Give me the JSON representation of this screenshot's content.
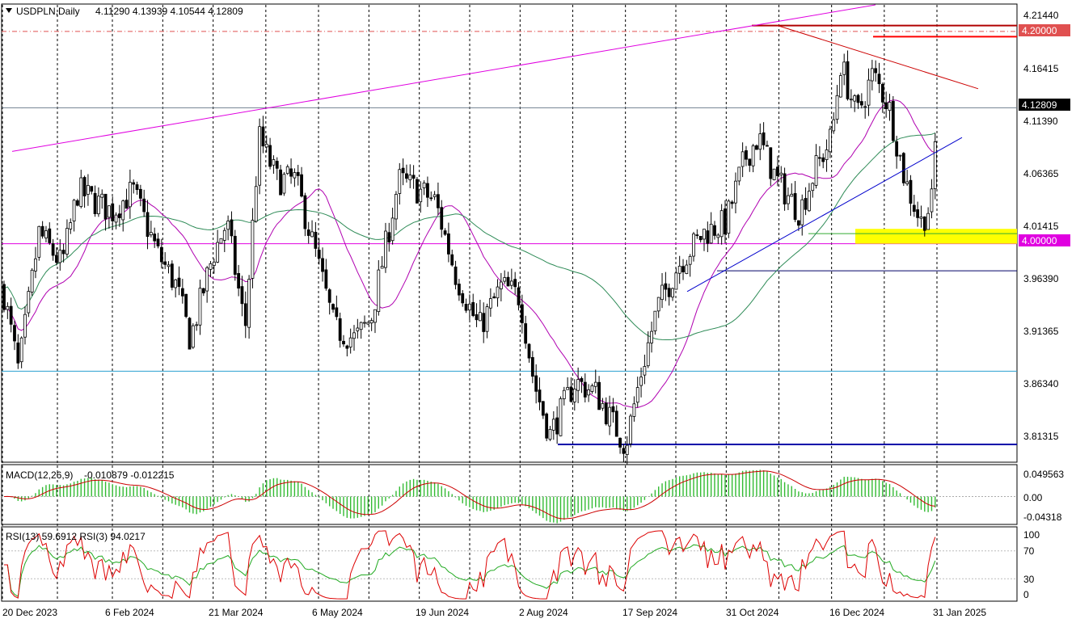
{
  "header": {
    "symbol_timeframe": "USDPLN,Daily",
    "ohlc": "4.11290 4.13939 4.10544 4.12809"
  },
  "macd_header": {
    "label": "MACD(12,26,9)",
    "values": "-0.010879 -0.012215"
  },
  "rsi_header": {
    "label": "RSI(13) 59.6912  RSI(3) 94.0217"
  },
  "price_axis": {
    "ticks": [
      "4.21440",
      "4.16415",
      "4.11390",
      "4.06365",
      "4.01415",
      "3.96390",
      "3.91365",
      "3.86340",
      "3.81315"
    ],
    "current_price": "4.12809",
    "level_420": "4.20000",
    "level_400": "4.00000"
  },
  "macd_axis": {
    "ticks": [
      "0.049563",
      "0.00",
      "-0.04318"
    ]
  },
  "rsi_axis": {
    "ticks": [
      "100",
      "70",
      "30",
      "0"
    ]
  },
  "date_axis": {
    "labels": [
      "20 Dec 2023",
      "6 Feb 2024",
      "21 Mar 2024",
      "6 May 2024",
      "19 Jun 2024",
      "2 Aug 2024",
      "17 Sep 2024",
      "31 Oct 2024",
      "16 Dec 2024",
      "31 Jan 2025"
    ]
  },
  "colors": {
    "bull_candle": "#ffffff",
    "bear_candle": "#000000",
    "ma_fast": "#b000b0",
    "ma_slow": "#2e8b57",
    "trend_magenta": "#e000e0",
    "trend_red": "#cc0000",
    "trend_blue": "#0000cc",
    "level_cyan": "#2aa0d0",
    "support_zone": "#ffff00",
    "macd_hist": "#33bb33",
    "macd_signal": "#cc0000",
    "rsi13": "#22aa22",
    "rsi3": "#dd0000"
  },
  "chart_data": {
    "type": "candlestick",
    "symbol": "USDPLN",
    "timeframe": "Daily",
    "last_bar": {
      "open": 4.1129,
      "high": 4.13939,
      "low": 4.10544,
      "close": 4.12809
    },
    "price_range": [
      3.795,
      4.225
    ],
    "horizontal_levels": [
      4.2,
      4.0,
      3.88,
      3.9745,
      3.811,
      4.2055,
      4.195
    ],
    "support_zone": [
      4.0,
      4.01
    ],
    "price_path": [
      [
        "20 Dec 2023",
        3.96
      ],
      [
        "27 Dec 2023",
        3.88
      ],
      [
        "5 Jan 2024",
        4.01
      ],
      [
        "15 Jan 2024",
        3.98
      ],
      [
        "22 Jan 2024",
        4.05
      ],
      [
        "6 Feb 2024",
        4.03
      ],
      [
        "15 Feb 2024",
        4.05
      ],
      [
        "26 Feb 2024",
        3.99
      ],
      [
        "5 Mar 2024",
        3.96
      ],
      [
        "11 Mar 2024",
        3.91
      ],
      [
        "21 Mar 2024",
        3.99
      ],
      [
        "27 Mar 2024",
        4.02
      ],
      [
        "4 Apr 2024",
        3.92
      ],
      [
        "10 Apr 2024",
        4.1
      ],
      [
        "18 Apr 2024",
        4.06
      ],
      [
        "26 Apr 2024",
        4.06
      ],
      [
        "6 May 2024",
        3.98
      ],
      [
        "13 May 2024",
        3.92
      ],
      [
        "22 May 2024",
        3.91
      ],
      [
        "29 May 2024",
        3.93
      ],
      [
        "10 Jun 2024",
        4.06
      ],
      [
        "19 Jun 2024",
        4.05
      ],
      [
        "26 Jun 2024",
        4.04
      ],
      [
        "5 Jul 2024",
        3.97
      ],
      [
        "15 Jul 2024",
        3.92
      ],
      [
        "25 Jul 2024",
        3.96
      ],
      [
        "2 Aug 2024",
        3.95
      ],
      [
        "8 Aug 2024",
        3.87
      ],
      [
        "15 Aug 2024",
        3.82
      ],
      [
        "26 Aug 2024",
        3.87
      ],
      [
        "4 Sep 2024",
        3.86
      ],
      [
        "17 Sep 2024",
        3.81
      ],
      [
        "24 Sep 2024",
        3.88
      ],
      [
        "1 Oct 2024",
        3.94
      ],
      [
        "10 Oct 2024",
        3.98
      ],
      [
        "21 Oct 2024",
        4.01
      ],
      [
        "31 Oct 2024",
        4.02
      ],
      [
        "8 Nov 2024",
        4.08
      ],
      [
        "14 Nov 2024",
        4.1
      ],
      [
        "22 Nov 2024",
        4.06
      ],
      [
        "2 Dec 2024",
        4.03
      ],
      [
        "9 Dec 2024",
        4.07
      ],
      [
        "16 Dec 2024",
        4.1
      ],
      [
        "20 Dec 2024",
        4.17
      ],
      [
        "27 Dec 2024",
        4.12
      ],
      [
        "3 Jan 2025",
        4.16
      ],
      [
        "10 Jan 2025",
        4.13
      ],
      [
        "17 Jan 2025",
        4.06
      ],
      [
        "24 Jan 2025",
        4.02
      ],
      [
        "29 Jan 2025",
        4.04
      ],
      [
        "31 Jan 2025",
        4.128
      ]
    ],
    "macd_range": [
      -0.04318,
      0.049563
    ],
    "rsi_levels": [
      70,
      30
    ],
    "indicators": [
      "MACD(12,26,9)",
      "RSI(13)",
      "RSI(3)"
    ]
  }
}
